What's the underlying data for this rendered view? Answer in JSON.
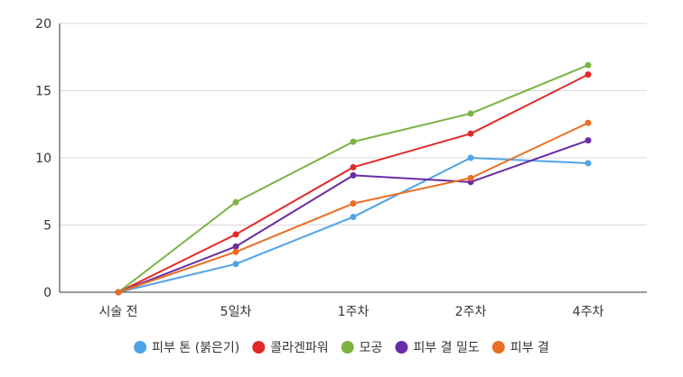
{
  "chart_data": {
    "type": "line",
    "categories": [
      "시술 전",
      "5일차",
      "1주차",
      "2주차",
      "4주차"
    ],
    "ylim": [
      0,
      20
    ],
    "yticks": [
      0,
      5,
      10,
      15,
      20
    ],
    "grid": true,
    "legend_position": "bottom",
    "series": [
      {
        "name": "피부 톤 (붉은기)",
        "color": "#4fa3e8",
        "values": [
          0,
          2.1,
          5.6,
          10.0,
          9.6
        ]
      },
      {
        "name": "콜라겐파워",
        "color": "#e02a2a",
        "values": [
          0,
          4.3,
          9.3,
          11.8,
          16.2
        ]
      },
      {
        "name": "모공",
        "color": "#7cb342",
        "values": [
          0,
          6.7,
          11.2,
          13.3,
          16.9
        ]
      },
      {
        "name": "피부 결 밀도",
        "color": "#6a2ca4",
        "values": [
          0,
          3.4,
          8.7,
          8.2,
          11.3
        ]
      },
      {
        "name": "피부 결",
        "color": "#ea6e24",
        "values": [
          0,
          3.0,
          6.6,
          8.5,
          12.6
        ]
      }
    ]
  }
}
